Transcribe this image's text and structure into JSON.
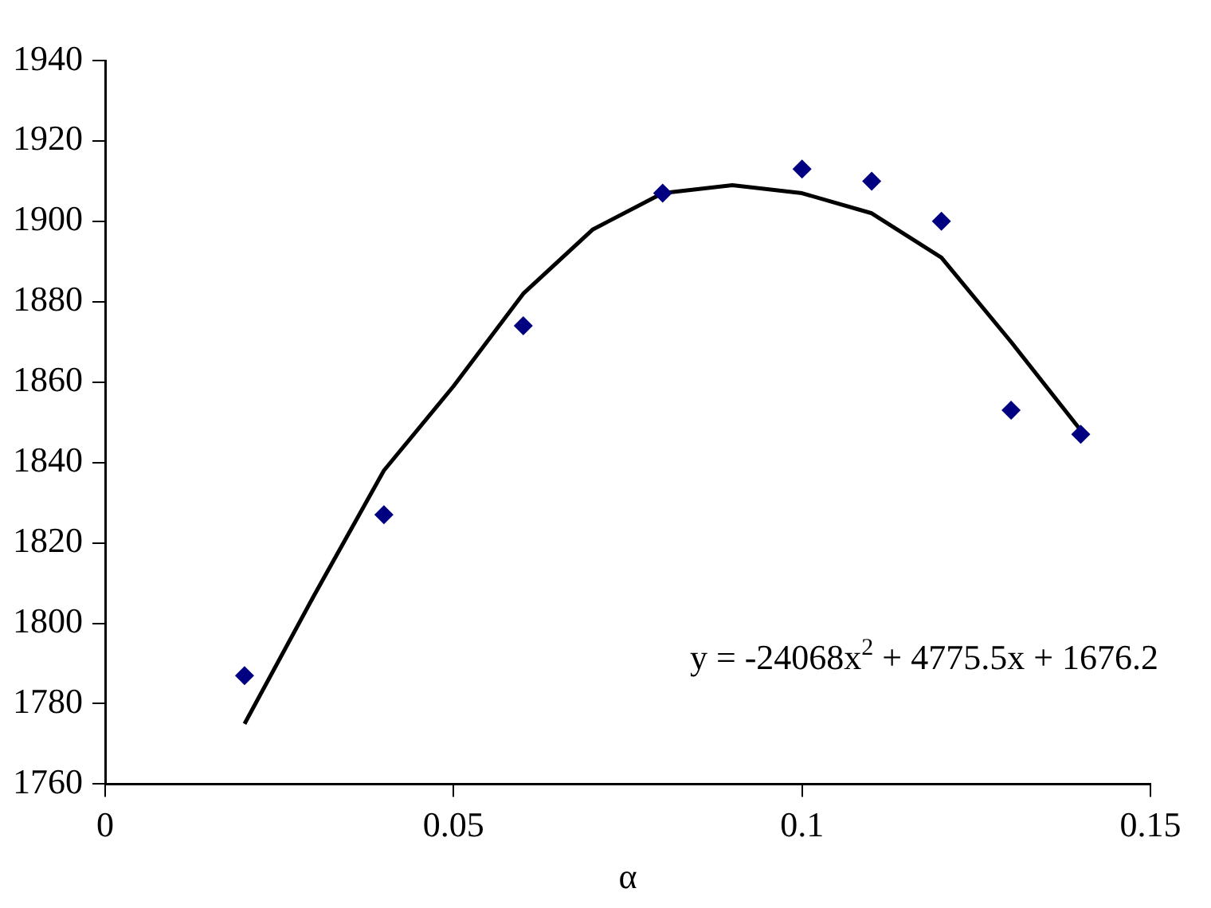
{
  "chart_data": {
    "type": "scatter",
    "xlabel": "α",
    "xlim": [
      0,
      0.15
    ],
    "xticks": [
      0,
      0.05,
      0.1,
      0.15
    ],
    "ylim": [
      1760,
      1940
    ],
    "yticks": [
      1760,
      1780,
      1800,
      1820,
      1840,
      1860,
      1880,
      1900,
      1920,
      1940
    ],
    "grid": false,
    "legend": false,
    "annotations": [
      "y = -24068x$^{2}$ + 4775.5x + 1676.2"
    ],
    "series": [
      {
        "type": "scatter",
        "color": "#000080",
        "marker": "diamond",
        "x": [
          0.02,
          0.04,
          0.06,
          0.08,
          0.1,
          0.11,
          0.12,
          0.13,
          0.14
        ],
        "values": [
          1787,
          1827,
          1874,
          1907,
          1913,
          1910,
          1900,
          1853,
          1847
        ]
      },
      {
        "type": "line",
        "color": "#000000",
        "marker": "none",
        "x": [
          0.02,
          0.03,
          0.04,
          0.05,
          0.06,
          0.07,
          0.08,
          0.09,
          0.1,
          0.11,
          0.12,
          0.13,
          0.14
        ],
        "values": [
          1775,
          1807,
          1838,
          1859,
          1882,
          1898,
          1907,
          1909,
          1907,
          1902,
          1891,
          1870,
          1848
        ]
      }
    ]
  }
}
